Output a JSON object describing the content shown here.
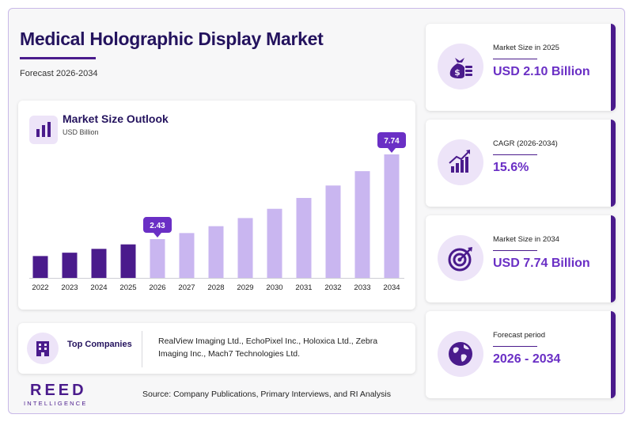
{
  "header": {
    "title": "Medical Holographic Display Market",
    "subtitle": "Forecast 2026-2034"
  },
  "chart_card": {
    "title": "Market Size Outlook",
    "unit": "USD Billion",
    "icon": "bar-chart-icon"
  },
  "chart_data": {
    "type": "bar",
    "title": "Market Size Outlook",
    "ylabel": "USD Billion",
    "categories": [
      "2022",
      "2023",
      "2024",
      "2025",
      "2026",
      "2027",
      "2028",
      "2029",
      "2030",
      "2031",
      "2032",
      "2033",
      "2034"
    ],
    "values": [
      1.37,
      1.58,
      1.82,
      2.1,
      2.43,
      2.81,
      3.24,
      3.75,
      4.33,
      5.01,
      5.79,
      6.69,
      7.74
    ],
    "ylim": [
      0,
      7.74
    ],
    "grid": false,
    "historical_color": "#4a1b8c",
    "forecast_color": "#c9b6f0",
    "forecast_start_index": 4,
    "callouts": [
      {
        "index": 4,
        "label": "2.43"
      },
      {
        "index": 12,
        "label": "7.74"
      }
    ],
    "callout_color": "#6a2fc5"
  },
  "companies": {
    "label": "Top Companies",
    "list": "RealView Imaging Ltd., EchoPixel Inc., Holoxica Ltd., Zebra Imaging Inc., Mach7 Technologies Ltd.",
    "icon": "building-icon"
  },
  "brand": {
    "name": "REED",
    "tagline": "INTELLIGENCE"
  },
  "source": "Source: Company Publications, Primary Interviews, and RI Analysis",
  "stats": [
    {
      "label": "Market Size in 2025",
      "value": "USD 2.10 Billion",
      "icon": "money-bag-icon"
    },
    {
      "label": "CAGR (2026-2034)",
      "value": "15.6%",
      "icon": "growth-chart-icon"
    },
    {
      "label": "Market Size in 2034",
      "value": "USD 7.74 Billion",
      "icon": "target-icon"
    },
    {
      "label": "Forecast period",
      "value": "2026 - 2034",
      "icon": "globe-icon"
    }
  ],
  "colors": {
    "accent": "#4a1b8c",
    "value_text": "#6a2fc5",
    "icon_bg": "#ede4f8"
  }
}
